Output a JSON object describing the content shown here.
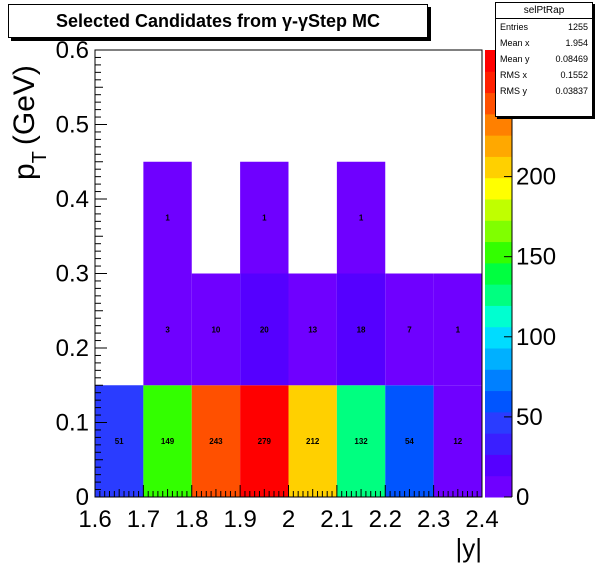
{
  "chart_data": {
    "type": "heatmap",
    "title": "Selected Candidates from γ-γStep MC",
    "xlabel": "|y|",
    "ylabel_main": "p",
    "ylabel_sub": "T",
    "ylabel_unit": "(GeV)",
    "xlim": [
      1.6,
      2.4
    ],
    "ylim": [
      0,
      0.6
    ],
    "x_ticks": [
      "1.6",
      "1.7",
      "1.8",
      "1.9",
      "2",
      "2.1",
      "2.2",
      "2.3",
      "2.4"
    ],
    "y_ticks": [
      "0",
      "0.1",
      "0.2",
      "0.3",
      "0.4",
      "0.5",
      "0.6"
    ],
    "z_ticks": [
      "0",
      "50",
      "100",
      "150",
      "200",
      "250"
    ],
    "zmax": 279,
    "cells": [
      {
        "x0": 1.6,
        "x1": 1.7,
        "y0": 0,
        "y1": 0.15,
        "value": 51,
        "label": "51"
      },
      {
        "x0": 1.7,
        "x1": 1.8,
        "y0": 0,
        "y1": 0.15,
        "value": 149,
        "label": "149"
      },
      {
        "x0": 1.8,
        "x1": 1.9,
        "y0": 0,
        "y1": 0.15,
        "value": 243,
        "label": "243"
      },
      {
        "x0": 1.9,
        "x1": 2.0,
        "y0": 0,
        "y1": 0.15,
        "value": 279,
        "label": "279"
      },
      {
        "x0": 2.0,
        "x1": 2.1,
        "y0": 0,
        "y1": 0.15,
        "value": 212,
        "label": "212"
      },
      {
        "x0": 2.1,
        "x1": 2.2,
        "y0": 0,
        "y1": 0.15,
        "value": 132,
        "label": "132"
      },
      {
        "x0": 2.2,
        "x1": 2.3,
        "y0": 0,
        "y1": 0.15,
        "value": 54,
        "label": "54"
      },
      {
        "x0": 2.3,
        "x1": 2.4,
        "y0": 0,
        "y1": 0.15,
        "value": 12,
        "label": "12"
      },
      {
        "x0": 1.7,
        "x1": 1.8,
        "y0": 0.15,
        "y1": 0.3,
        "value": 3,
        "label": "3"
      },
      {
        "x0": 1.8,
        "x1": 1.9,
        "y0": 0.15,
        "y1": 0.3,
        "value": 10,
        "label": "10"
      },
      {
        "x0": 1.9,
        "x1": 2.0,
        "y0": 0.15,
        "y1": 0.3,
        "value": 20,
        "label": "20"
      },
      {
        "x0": 2.0,
        "x1": 2.1,
        "y0": 0.15,
        "y1": 0.3,
        "value": 13,
        "label": "13"
      },
      {
        "x0": 2.1,
        "x1": 2.2,
        "y0": 0.15,
        "y1": 0.3,
        "value": 18,
        "label": "18"
      },
      {
        "x0": 2.2,
        "x1": 2.3,
        "y0": 0.15,
        "y1": 0.3,
        "value": 7,
        "label": "7"
      },
      {
        "x0": 2.3,
        "x1": 2.4,
        "y0": 0.15,
        "y1": 0.3,
        "value": 1,
        "label": "1"
      },
      {
        "x0": 1.7,
        "x1": 1.8,
        "y0": 0.3,
        "y1": 0.45,
        "value": 1,
        "label": "1"
      },
      {
        "x0": 1.9,
        "x1": 2.0,
        "y0": 0.3,
        "y1": 0.45,
        "value": 1,
        "label": "1"
      },
      {
        "x0": 2.1,
        "x1": 2.2,
        "y0": 0.3,
        "y1": 0.45,
        "value": 1,
        "label": "1"
      }
    ],
    "palette": [
      "#6f00ff",
      "#5500ff",
      "#3a1fff",
      "#2a3cff",
      "#0055ff",
      "#0080ff",
      "#00b0ff",
      "#00dcff",
      "#00ffd0",
      "#00ff80",
      "#00ff40",
      "#33ff00",
      "#80ff00",
      "#c0ff00",
      "#ffff00",
      "#ffd000",
      "#ffa800",
      "#ff8000",
      "#ff5000",
      "#ff2000",
      "#ff0000"
    ]
  },
  "stats": {
    "name": "selPtRap",
    "rows": [
      {
        "label": "Entries",
        "value": "1255"
      },
      {
        "label": "Mean x",
        "value": "1.954"
      },
      {
        "label": "Mean y",
        "value": "0.08469"
      },
      {
        "label": "RMS x",
        "value": "0.1552"
      },
      {
        "label": "RMS y",
        "value": "0.03837"
      }
    ]
  }
}
